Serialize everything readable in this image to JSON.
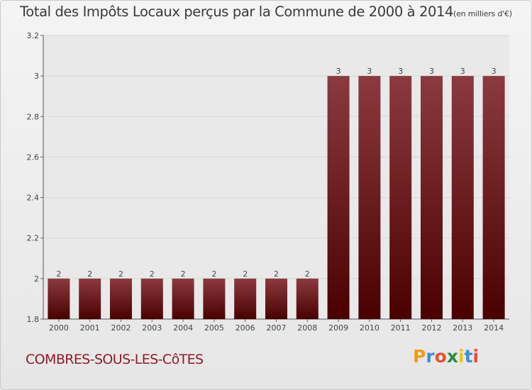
{
  "header": {
    "title": "Total des Impôts Locaux perçus par la Commune de 2000 à 2014",
    "unit": "(en milliers d'€)"
  },
  "footer": {
    "commune": "COMBRES-SOUS-LES-CôTES",
    "brand": "Proxiti",
    "brand_colors": [
      "#f39c12",
      "#3a8fd8",
      "#e8542a",
      "#2e8b3e",
      "#f1c40f",
      "#3a8fd8",
      "#e74c3c"
    ]
  },
  "chart_data": {
    "type": "bar",
    "title": "Total des Impôts Locaux perçus par la Commune de 2000 à 2014",
    "categories": [
      "2000",
      "2001",
      "2002",
      "2003",
      "2004",
      "2005",
      "2006",
      "2007",
      "2008",
      "2009",
      "2010",
      "2011",
      "2012",
      "2013",
      "2014"
    ],
    "values": [
      2,
      2,
      2,
      2,
      2,
      2,
      2,
      2,
      2,
      3,
      3,
      3,
      3,
      3,
      3
    ],
    "labels": [
      "2",
      "2",
      "2",
      "2",
      "2",
      "2",
      "2",
      "2",
      "2",
      "3",
      "3",
      "3",
      "3",
      "3",
      "3"
    ],
    "ylim": [
      1.8,
      3.2
    ],
    "yticks": [
      1.8,
      2,
      2.2,
      2.4,
      2.6,
      2.8,
      3,
      3.2
    ],
    "ytick_labels": [
      "1.8",
      "2",
      "2.2",
      "2.4",
      "2.6",
      "2.8",
      "3",
      "3.2"
    ],
    "grid": true,
    "colors": {
      "bar_top": "#8b3a3f",
      "bar_bottom": "#4a0000",
      "plot_bg": "#e9e9e9",
      "grid": "#d7d7d7"
    }
  }
}
